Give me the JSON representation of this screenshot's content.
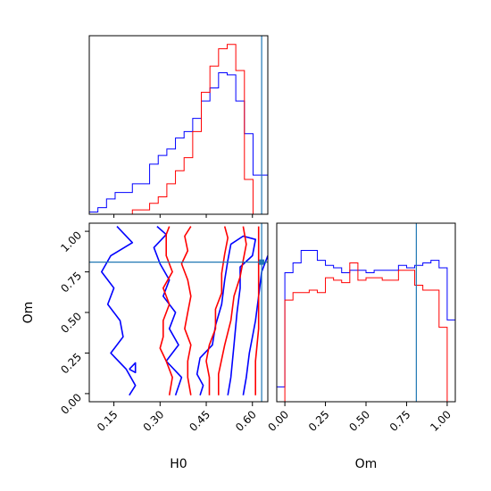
{
  "chart_data": {
    "type": "corner",
    "parameters": [
      "H0",
      "Om"
    ],
    "truths": {
      "H0": 0.63,
      "Om": 0.81
    },
    "colors": {
      "first": "#0000ff",
      "second": "#ff0000",
      "truth": "#1f77b4"
    },
    "axes": {
      "H0": {
        "label": "H0",
        "range": [
          0.07,
          0.65
        ],
        "ticks": [
          0.15,
          0.3,
          0.45,
          0.6
        ],
        "tick_labels": [
          "0.15",
          "0.30",
          "0.45",
          "0.60"
        ]
      },
      "Om": {
        "label": "Om",
        "range": [
          -0.05,
          1.05
        ],
        "ticks": [
          0.0,
          0.25,
          0.5,
          0.75,
          1.0
        ],
        "tick_labels": [
          "0.00",
          "0.25",
          "0.50",
          "0.75",
          "1.00"
        ]
      }
    },
    "hist_H0": {
      "edges": [
        0.07,
        0.098,
        0.126,
        0.154,
        0.182,
        0.21,
        0.238,
        0.266,
        0.294,
        0.322,
        0.35,
        0.378,
        0.406,
        0.434,
        0.462,
        0.49,
        0.518,
        0.546,
        0.574,
        0.602,
        0.65
      ],
      "blue": [
        0.01,
        0.03,
        0.07,
        0.1,
        0.1,
        0.14,
        0.14,
        0.23,
        0.27,
        0.3,
        0.35,
        0.38,
        0.44,
        0.52,
        0.58,
        0.65,
        0.64,
        0.52,
        0.37,
        0.18
      ],
      "red": [
        0.0,
        0.0,
        0.0,
        0.0,
        0.0,
        0.02,
        0.02,
        0.05,
        0.08,
        0.14,
        0.2,
        0.26,
        0.38,
        0.56,
        0.68,
        0.76,
        0.78,
        0.66,
        0.16,
        0.0
      ]
    },
    "hist_Om": {
      "edges": [
        -0.05,
        0.0,
        0.05,
        0.1,
        0.15,
        0.2,
        0.25,
        0.3,
        0.35,
        0.4,
        0.45,
        0.5,
        0.55,
        0.6,
        0.65,
        0.7,
        0.75,
        0.8,
        0.85,
        0.9,
        0.95,
        1.0,
        1.05
      ],
      "blue": [
        0.06,
        0.52,
        0.56,
        0.61,
        0.61,
        0.57,
        0.55,
        0.54,
        0.52,
        0.53,
        0.53,
        0.52,
        0.53,
        0.53,
        0.53,
        0.55,
        0.54,
        0.55,
        0.56,
        0.57,
        0.54,
        0.33
      ],
      "red": [
        0.0,
        0.41,
        0.44,
        0.44,
        0.45,
        0.44,
        0.5,
        0.49,
        0.48,
        0.56,
        0.49,
        0.5,
        0.5,
        0.49,
        0.49,
        0.53,
        0.53,
        0.47,
        0.45,
        0.45,
        0.3,
        0.0
      ]
    },
    "contours_H0_Om": [
      {
        "color": "blue",
        "points": [
          [
            0.2,
            -0.01
          ],
          [
            0.22,
            0.05
          ],
          [
            0.19,
            0.15
          ],
          [
            0.14,
            0.25
          ],
          [
            0.18,
            0.35
          ],
          [
            0.17,
            0.45
          ],
          [
            0.13,
            0.55
          ],
          [
            0.15,
            0.65
          ],
          [
            0.11,
            0.75
          ],
          [
            0.14,
            0.85
          ],
          [
            0.21,
            0.93
          ],
          [
            0.16,
            1.03
          ]
        ]
      },
      {
        "color": "blue",
        "points": [
          [
            0.2,
            0.15
          ],
          [
            0.22,
            0.13
          ],
          [
            0.22,
            0.19
          ],
          [
            0.2,
            0.15
          ]
        ]
      },
      {
        "color": "blue",
        "points": [
          [
            0.35,
            -0.01
          ],
          [
            0.37,
            0.1
          ],
          [
            0.32,
            0.2
          ],
          [
            0.36,
            0.3
          ],
          [
            0.33,
            0.4
          ],
          [
            0.35,
            0.5
          ],
          [
            0.31,
            0.6
          ],
          [
            0.33,
            0.7
          ],
          [
            0.3,
            0.8
          ],
          [
            0.28,
            0.9
          ],
          [
            0.32,
            0.98
          ],
          [
            0.29,
            1.03
          ]
        ]
      },
      {
        "color": "blue",
        "points": [
          [
            0.43,
            -0.01
          ],
          [
            0.44,
            0.05
          ],
          [
            0.42,
            0.12
          ],
          [
            0.43,
            0.22
          ],
          [
            0.47,
            0.3
          ],
          [
            0.48,
            0.42
          ],
          [
            0.5,
            0.55
          ],
          [
            0.51,
            0.7
          ],
          [
            0.52,
            0.82
          ],
          [
            0.53,
            0.92
          ],
          [
            0.57,
            0.97
          ],
          [
            0.61,
            0.95
          ],
          [
            0.6,
            0.85
          ],
          [
            0.56,
            0.78
          ],
          [
            0.56,
            0.65
          ],
          [
            0.55,
            0.5
          ],
          [
            0.54,
            0.3
          ],
          [
            0.53,
            0.1
          ],
          [
            0.52,
            -0.01
          ]
        ]
      },
      {
        "color": "blue",
        "points": [
          [
            0.57,
            -0.01
          ],
          [
            0.58,
            0.1
          ],
          [
            0.59,
            0.25
          ],
          [
            0.6,
            0.35
          ],
          [
            0.61,
            0.45
          ],
          [
            0.62,
            0.6
          ],
          [
            0.63,
            0.75
          ],
          [
            0.65,
            0.85
          ]
        ]
      },
      {
        "color": "red",
        "points": [
          [
            0.33,
            -0.01
          ],
          [
            0.34,
            0.1
          ],
          [
            0.32,
            0.2
          ],
          [
            0.3,
            0.28
          ],
          [
            0.31,
            0.35
          ],
          [
            0.31,
            0.45
          ],
          [
            0.33,
            0.55
          ],
          [
            0.31,
            0.65
          ],
          [
            0.34,
            0.75
          ],
          [
            0.32,
            0.85
          ],
          [
            0.32,
            0.98
          ],
          [
            0.33,
            1.03
          ]
        ]
      },
      {
        "color": "red",
        "points": [
          [
            0.4,
            -0.01
          ],
          [
            0.39,
            0.1
          ],
          [
            0.39,
            0.2
          ],
          [
            0.4,
            0.3
          ],
          [
            0.38,
            0.4
          ],
          [
            0.39,
            0.5
          ],
          [
            0.4,
            0.6
          ],
          [
            0.39,
            0.7
          ],
          [
            0.37,
            0.8
          ],
          [
            0.39,
            0.88
          ],
          [
            0.38,
            0.97
          ],
          [
            0.4,
            1.03
          ]
        ]
      },
      {
        "color": "red",
        "points": [
          [
            0.46,
            -0.01
          ],
          [
            0.46,
            0.1
          ],
          [
            0.45,
            0.2
          ],
          [
            0.46,
            0.3
          ],
          [
            0.48,
            0.4
          ],
          [
            0.48,
            0.52
          ],
          [
            0.5,
            0.62
          ],
          [
            0.5,
            0.74
          ],
          [
            0.51,
            0.86
          ],
          [
            0.52,
            0.96
          ],
          [
            0.51,
            1.03
          ]
        ]
      },
      {
        "color": "red",
        "points": [
          [
            0.49,
            -0.01
          ],
          [
            0.49,
            0.12
          ],
          [
            0.51,
            0.3
          ],
          [
            0.53,
            0.45
          ],
          [
            0.54,
            0.6
          ],
          [
            0.56,
            0.72
          ],
          [
            0.57,
            0.82
          ],
          [
            0.58,
            0.92
          ],
          [
            0.57,
            1.03
          ]
        ]
      },
      {
        "color": "red",
        "points": [
          [
            0.61,
            -0.01
          ],
          [
            0.61,
            0.2
          ],
          [
            0.62,
            0.4
          ],
          [
            0.62,
            0.6
          ],
          [
            0.62,
            0.8
          ],
          [
            0.62,
            1.03
          ]
        ]
      }
    ]
  }
}
